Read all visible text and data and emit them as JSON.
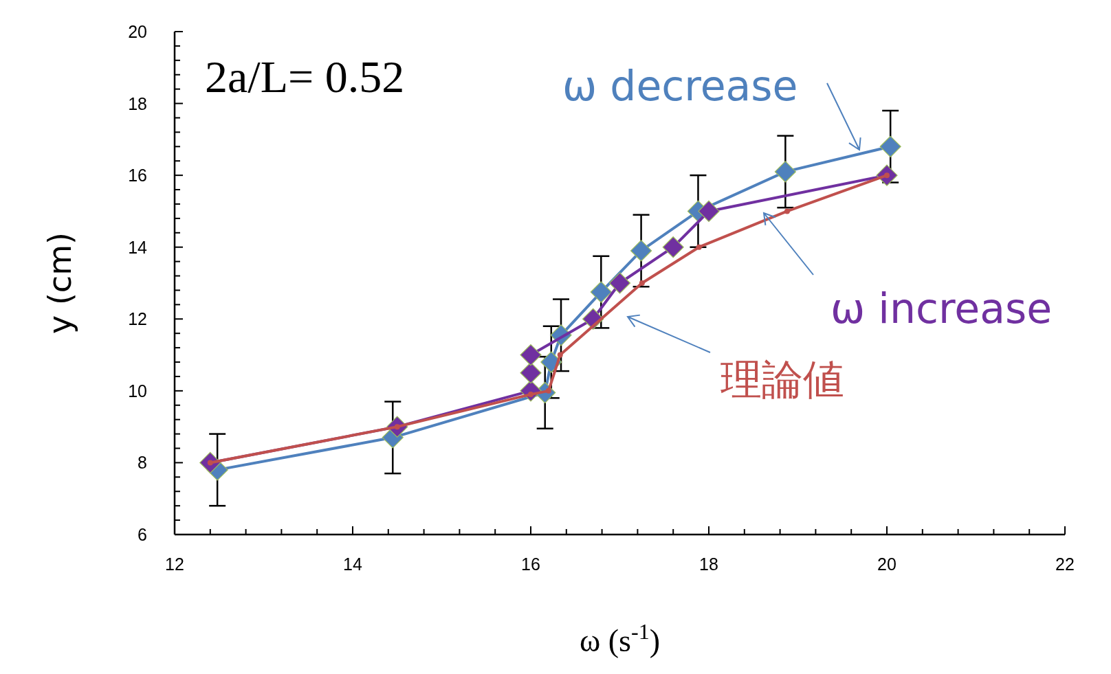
{
  "chart_data": {
    "type": "line",
    "xlabel": "ω (s$^{-1}$)",
    "ylabel": "y (cm)",
    "annotations": [
      "2a/L= 0.52"
    ],
    "xlim": [
      12,
      22
    ],
    "ylim": [
      6,
      20
    ],
    "xticks": [
      12,
      {
        "value": 12.4,
        "label": null
      },
      {
        "value": 12.8,
        "label": null
      },
      {
        "value": 13.2,
        "label": null
      },
      {
        "value": 13.6,
        "label": null
      },
      14,
      {
        "value": 14.4,
        "label": null
      },
      {
        "value": 14.8,
        "label": null
      },
      {
        "value": 15.2,
        "label": null
      },
      {
        "value": 15.6,
        "label": null
      },
      16,
      {
        "value": 16.4,
        "label": null
      },
      {
        "value": 16.8,
        "label": null
      },
      {
        "value": 17.2,
        "label": null
      },
      {
        "value": 17.6,
        "label": null
      },
      18,
      {
        "value": 18.4,
        "label": null
      },
      {
        "value": 18.8,
        "label": null
      },
      {
        "value": 19.2,
        "label": null
      },
      {
        "value": 19.6,
        "label": null
      },
      20,
      {
        "value": 20.4,
        "label": null
      },
      {
        "value": 20.8,
        "label": null
      },
      {
        "value": 21.2,
        "label": null
      },
      {
        "value": 21.6,
        "label": null
      },
      22
    ],
    "yticks": [
      6,
      {
        "value": 6.4,
        "label": null
      },
      {
        "value": 6.8,
        "label": null
      },
      {
        "value": 7.2,
        "label": null
      },
      {
        "value": 7.6,
        "label": null
      },
      8,
      {
        "value": 8.4,
        "label": null
      },
      {
        "value": 8.8,
        "label": null
      },
      {
        "value": 9.2,
        "label": null
      },
      {
        "value": 9.6,
        "label": null
      },
      10,
      {
        "value": 10.4,
        "label": null
      },
      {
        "value": 10.8,
        "label": null
      },
      {
        "value": 11.2,
        "label": null
      },
      {
        "value": 11.6,
        "label": null
      },
      12,
      {
        "value": 12.4,
        "label": null
      },
      {
        "value": 12.8,
        "label": null
      },
      {
        "value": 13.2,
        "label": null
      },
      {
        "value": 13.6,
        "label": null
      },
      14,
      {
        "value": 14.4,
        "label": null
      },
      {
        "value": 14.8,
        "label": null
      },
      {
        "value": 15.2,
        "label": null
      },
      {
        "value": 15.6,
        "label": null
      },
      16,
      {
        "value": 16.4,
        "label": null
      },
      {
        "value": 16.8,
        "label": null
      },
      {
        "value": 17.2,
        "label": null
      },
      {
        "value": 17.6,
        "label": null
      },
      18,
      {
        "value": 18.4,
        "label": null
      },
      {
        "value": 18.8,
        "label": null
      },
      {
        "value": 19.2,
        "label": null
      },
      {
        "value": 19.6,
        "label": null
      },
      20
    ],
    "grid": false,
    "line_style": "solid",
    "series": [
      {
        "name": "理論値",
        "color": "#c0504d",
        "marker": "circle",
        "x": [
          12.4,
          14.5,
          16.0,
          16.2,
          16.33,
          17.25,
          17.89,
          18.88,
          20.0
        ],
        "values": [
          8,
          9,
          9.9,
          10,
          11,
          13,
          14,
          15,
          16
        ]
      },
      {
        "name": "ω increase",
        "color": "#7030a0",
        "marker": "diamond",
        "x": [
          12.4,
          14.5,
          16.0,
          16.0,
          16.0,
          16.7,
          17.0,
          17.6,
          18.0,
          20.0
        ],
        "values": [
          8,
          9,
          10,
          10.5,
          11,
          12,
          13,
          14,
          15,
          16
        ]
      },
      {
        "name": "ω decrease",
        "color": "#4f81bd",
        "marker": "diamond",
        "x": [
          12.48,
          14.45,
          16.16,
          16.23,
          16.34,
          16.79,
          17.24,
          17.88,
          18.86,
          20.04
        ],
        "values": [
          7.8,
          8.7,
          9.95,
          10.8,
          11.55,
          12.75,
          13.9,
          15.0,
          16.1,
          16.8
        ],
        "errors": [
          1,
          1,
          1,
          1,
          1,
          1,
          1,
          1,
          1,
          1
        ]
      }
    ]
  }
}
